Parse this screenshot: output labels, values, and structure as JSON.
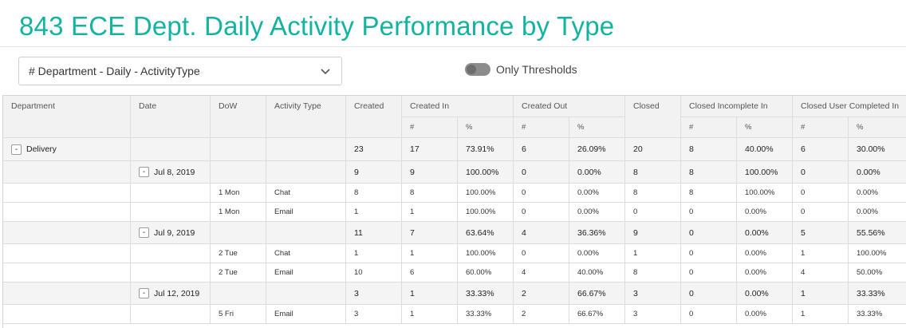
{
  "page": {
    "title": "843 ECE Dept. Daily Activity Performance by Type"
  },
  "filter": {
    "selected": "# Department - Daily - ActivityType"
  },
  "toggle": {
    "label": "Only Thresholds",
    "on": false
  },
  "table": {
    "headers": {
      "department": "Department",
      "date": "Date",
      "dow": "DoW",
      "activity_type": "Activity Type",
      "created": "Created",
      "created_in": "Created In",
      "created_out": "Created Out",
      "closed": "Closed",
      "closed_incomplete_in": "Closed Incomplete In",
      "closed_user_completed_in": "Closed User Completed In"
    },
    "subheaders": {
      "count": "#",
      "pct": "%"
    },
    "expand_symbol": "-",
    "rows": [
      {
        "kind": "top",
        "expand": "-",
        "label": "Delivery",
        "date": "",
        "dow": "",
        "type": "",
        "created": "23",
        "cin_n": "17",
        "cin_p": "73.91%",
        "cout_n": "6",
        "cout_p": "26.09%",
        "closed": "20",
        "cii_n": "8",
        "cii_p": "40.00%",
        "cuci_n": "6",
        "cuci_p": "30.00%"
      },
      {
        "kind": "date",
        "expand": "-",
        "label": "",
        "date": "Jul 8, 2019",
        "dow": "",
        "type": "",
        "created": "9",
        "cin_n": "9",
        "cin_p": "100.00%",
        "cout_n": "0",
        "cout_p": "0.00%",
        "closed": "8",
        "cii_n": "8",
        "cii_p": "100.00%",
        "cuci_n": "0",
        "cuci_p": "0.00%"
      },
      {
        "kind": "detail",
        "label": "",
        "date": "",
        "dow": "1 Mon",
        "type": "Chat",
        "created": "8",
        "cin_n": "8",
        "cin_p": "100.00%",
        "cout_n": "0",
        "cout_p": "0.00%",
        "closed": "8",
        "cii_n": "8",
        "cii_p": "100.00%",
        "cuci_n": "0",
        "cuci_p": "0.00%"
      },
      {
        "kind": "detail",
        "label": "",
        "date": "",
        "dow": "1 Mon",
        "type": "Email",
        "created": "1",
        "cin_n": "1",
        "cin_p": "100.00%",
        "cout_n": "0",
        "cout_p": "0.00%",
        "closed": "0",
        "cii_n": "0",
        "cii_p": "0.00%",
        "cuci_n": "0",
        "cuci_p": "0.00%"
      },
      {
        "kind": "date",
        "expand": "-",
        "label": "",
        "date": "Jul 9, 2019",
        "dow": "",
        "type": "",
        "created": "11",
        "cin_n": "7",
        "cin_p": "63.64%",
        "cout_n": "4",
        "cout_p": "36.36%",
        "closed": "9",
        "cii_n": "0",
        "cii_p": "0.00%",
        "cuci_n": "5",
        "cuci_p": "55.56%"
      },
      {
        "kind": "detail",
        "label": "",
        "date": "",
        "dow": "2 Tue",
        "type": "Chat",
        "created": "1",
        "cin_n": "1",
        "cin_p": "100.00%",
        "cout_n": "0",
        "cout_p": "0.00%",
        "closed": "1",
        "cii_n": "0",
        "cii_p": "0.00%",
        "cuci_n": "1",
        "cuci_p": "100.00%"
      },
      {
        "kind": "detail",
        "label": "",
        "date": "",
        "dow": "2 Tue",
        "type": "Email",
        "created": "10",
        "cin_n": "6",
        "cin_p": "60.00%",
        "cout_n": "4",
        "cout_p": "40.00%",
        "closed": "8",
        "cii_n": "0",
        "cii_p": "0.00%",
        "cuci_n": "4",
        "cuci_p": "50.00%"
      },
      {
        "kind": "date",
        "expand": "-",
        "label": "",
        "date": "Jul 12, 2019",
        "dow": "",
        "type": "",
        "created": "3",
        "cin_n": "1",
        "cin_p": "33.33%",
        "cout_n": "2",
        "cout_p": "66.67%",
        "closed": "3",
        "cii_n": "0",
        "cii_p": "0.00%",
        "cuci_n": "1",
        "cuci_p": "33.33%"
      },
      {
        "kind": "detail",
        "label": "",
        "date": "",
        "dow": "5 Fri",
        "type": "Email",
        "created": "3",
        "cin_n": "1",
        "cin_p": "33.33%",
        "cout_n": "2",
        "cout_p": "66.67%",
        "closed": "3",
        "cii_n": "0",
        "cii_p": "0.00%",
        "cuci_n": "1",
        "cuci_p": "33.33%"
      }
    ]
  },
  "colors": {
    "title": "#12b3a1",
    "header_bg": "#f2f2f2",
    "group_row_bg": "#f4f4f4",
    "toggle_off": "#8c8c8c"
  }
}
